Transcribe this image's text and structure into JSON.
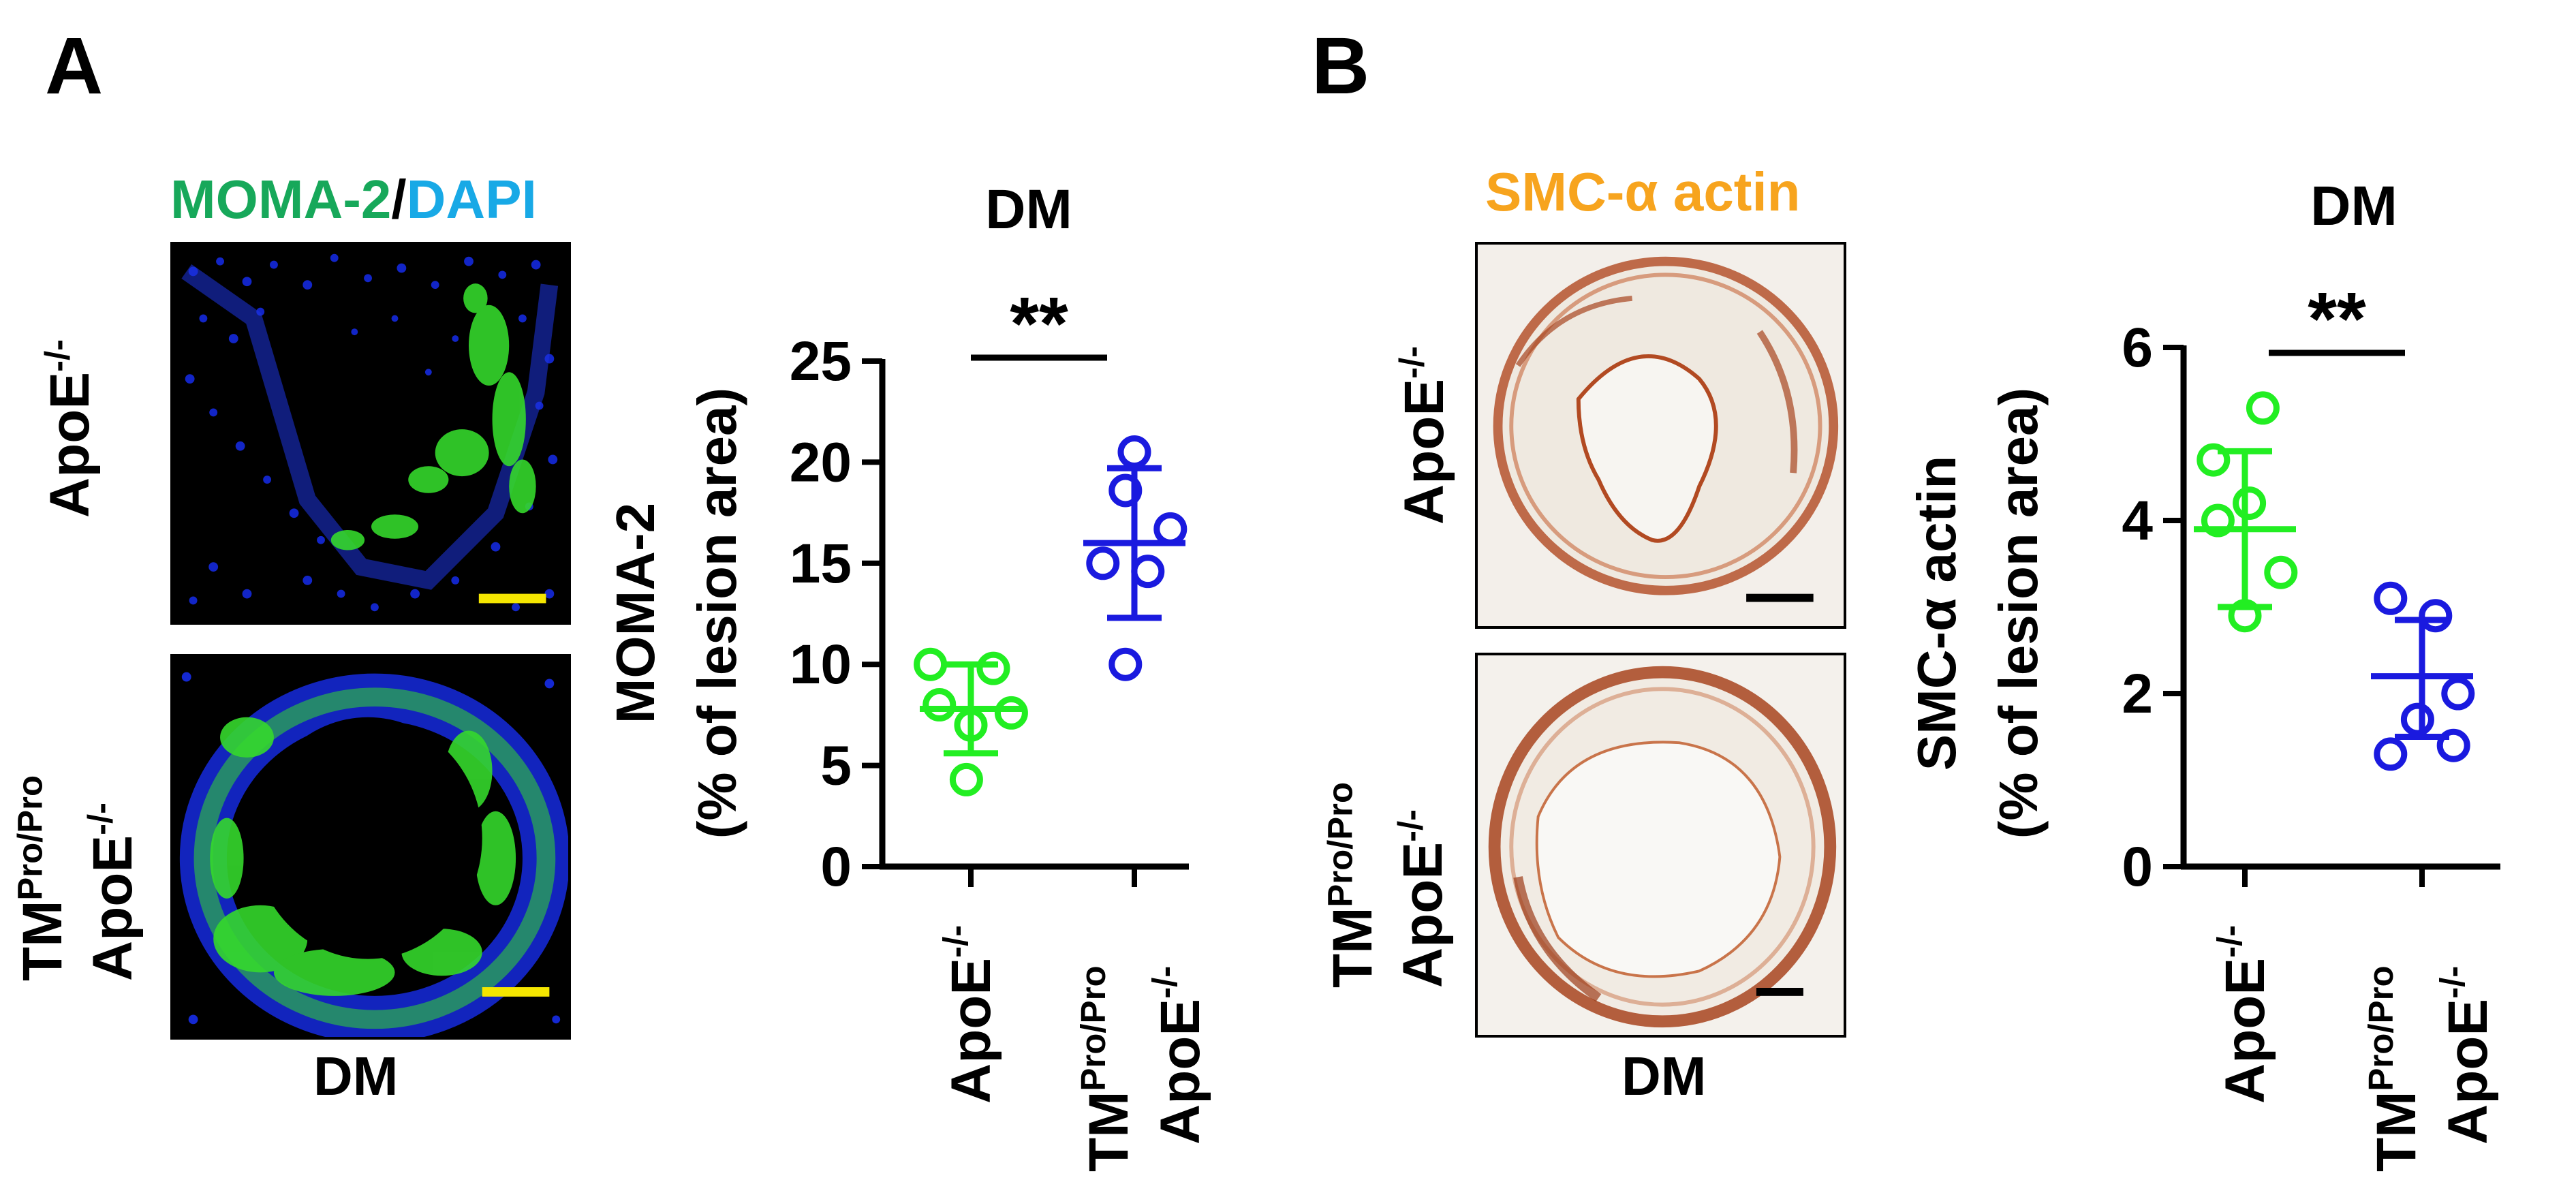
{
  "panels": {
    "a": {
      "letter": "A",
      "stain": {
        "part1": "MOMA-2",
        "slash": "/",
        "part2": "DAPI",
        "color1": "#17a85a",
        "color2": "#18a9e6"
      },
      "row_labels": [
        {
          "main": "ApoE",
          "sup": "-/-"
        },
        {
          "line1_main": "TM",
          "line1_sup": "Pro/Pro",
          "line2_main": "ApoE",
          "line2_sup": "-/-"
        }
      ],
      "caption": "DM",
      "image_colors": {
        "background": "#000000",
        "nuclei": "#1428d2",
        "macrophage": "#35d82c",
        "scale_bar": "#f4e600"
      }
    },
    "b": {
      "letter": "B",
      "stain": {
        "text": "SMC-α actin",
        "color": "#f7a41e"
      },
      "row_labels": [
        {
          "main": "ApoE",
          "sup": "-/-"
        },
        {
          "line1_main": "TM",
          "line1_sup": "Pro/Pro",
          "line2_main": "ApoE",
          "line2_sup": "-/-"
        }
      ],
      "caption": "DM",
      "image_colors": {
        "background": "#f3efea",
        "stain": "#b24a22",
        "scale_bar": "#000000"
      }
    }
  },
  "chart_data": [
    {
      "type": "scatter",
      "title": "DM",
      "ylabel_line1": "MOMA-2",
      "ylabel_line2": "(% of lesion area)",
      "ylim": [
        0,
        25
      ],
      "yticks": [
        0,
        5,
        10,
        15,
        20,
        25
      ],
      "categories": [
        {
          "main": "ApoE",
          "sup": "-/-"
        },
        {
          "line1_main": "TM",
          "line1_sup": "Pro/Pro",
          "line2_main": "ApoE",
          "line2_sup": "-/-"
        }
      ],
      "significance": "**",
      "series": [
        {
          "color": "#22ee22",
          "mean": 7.8,
          "sd_low": 5.6,
          "sd_high": 10.0,
          "points": [
            {
              "offset": -0.9,
              "y": 10.0
            },
            {
              "offset": 0.5,
              "y": 9.8
            },
            {
              "offset": -0.7,
              "y": 8.0
            },
            {
              "offset": 0.9,
              "y": 7.6
            },
            {
              "offset": 0.0,
              "y": 7.0
            },
            {
              "offset": -0.1,
              "y": 4.3
            }
          ]
        },
        {
          "color": "#1a1adf",
          "mean": 16.0,
          "sd_low": 12.3,
          "sd_high": 19.7,
          "points": [
            {
              "offset": 0.0,
              "y": 20.5
            },
            {
              "offset": -0.2,
              "y": 18.6
            },
            {
              "offset": 0.8,
              "y": 16.7
            },
            {
              "offset": -0.7,
              "y": 15.0
            },
            {
              "offset": 0.3,
              "y": 14.6
            },
            {
              "offset": -0.2,
              "y": 10.0
            }
          ]
        }
      ]
    },
    {
      "type": "scatter",
      "title": "DM",
      "ylabel_line1": "SMC-α actin",
      "ylabel_line2": "(% of lesion area)",
      "ylim": [
        0,
        6
      ],
      "yticks": [
        0,
        2,
        4,
        6
      ],
      "categories": [
        {
          "main": "ApoE",
          "sup": "-/-"
        },
        {
          "line1_main": "TM",
          "line1_sup": "Pro/Pro",
          "line2_main": "ApoE",
          "line2_sup": "-/-"
        }
      ],
      "significance": "**",
      "series": [
        {
          "color": "#22ee22",
          "mean": 3.9,
          "sd_low": 3.0,
          "sd_high": 4.8,
          "points": [
            {
              "offset": 0.4,
              "y": 5.3
            },
            {
              "offset": -0.7,
              "y": 4.7
            },
            {
              "offset": 0.1,
              "y": 4.2
            },
            {
              "offset": -0.6,
              "y": 4.0
            },
            {
              "offset": 0.8,
              "y": 3.4
            },
            {
              "offset": 0.0,
              "y": 2.9
            }
          ]
        },
        {
          "color": "#1a1adf",
          "mean": 2.2,
          "sd_low": 1.5,
          "sd_high": 2.85,
          "points": [
            {
              "offset": -0.7,
              "y": 3.1
            },
            {
              "offset": 0.3,
              "y": 2.9
            },
            {
              "offset": 0.8,
              "y": 2.0
            },
            {
              "offset": -0.1,
              "y": 1.7
            },
            {
              "offset": -0.7,
              "y": 1.3
            },
            {
              "offset": 0.7,
              "y": 1.4
            }
          ]
        }
      ]
    }
  ]
}
